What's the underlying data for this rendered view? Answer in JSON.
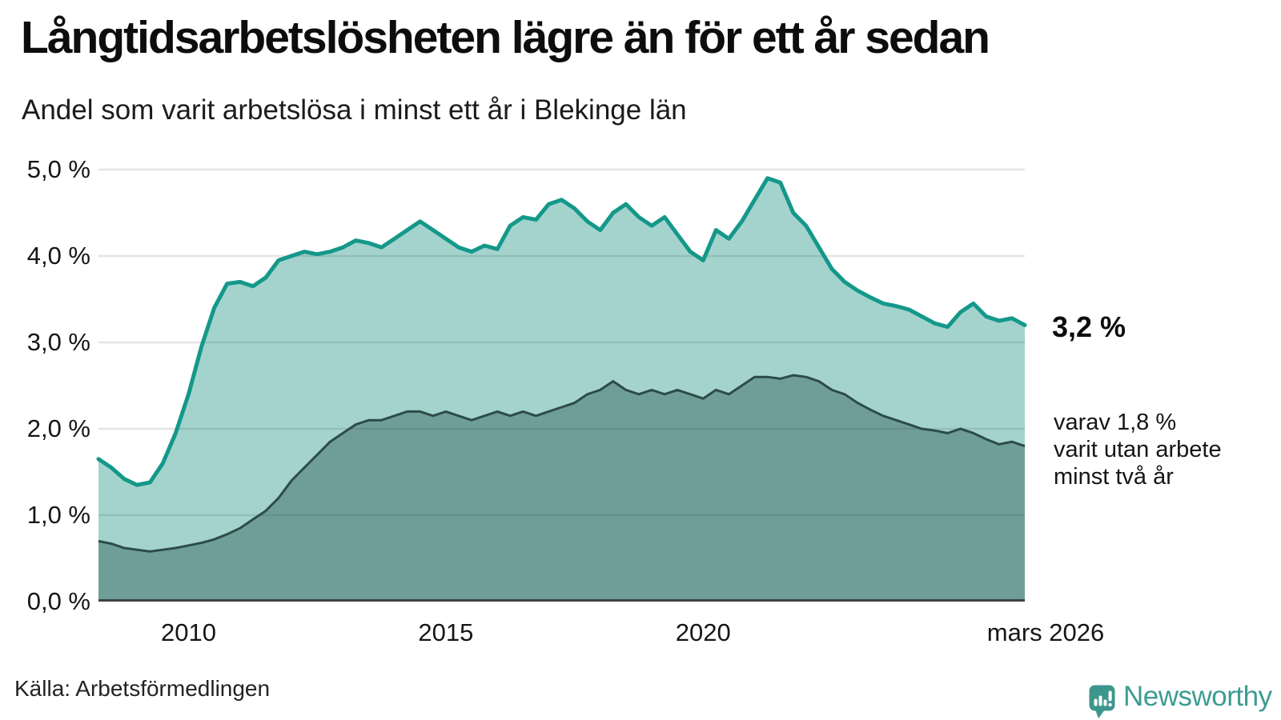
{
  "header": {
    "title": "Långtidsarbetslösheten lägre än för ett år sedan",
    "subtitle": "Andel som varit arbetslösa i minst ett år i Blekinge län"
  },
  "annotations": {
    "latest_total": "3,2 %",
    "latest_two_year_lines": [
      "varav 1,8 %",
      "varit utan arbete",
      "minst två år"
    ]
  },
  "footer": {
    "source": "Källa: Arbetsförmedlingen",
    "brand": "Newsworthy"
  },
  "colors": {
    "line_one_year": "#14988a",
    "fill_one_year": "#a4d3cd",
    "line_two_year": "#2d4c47",
    "fill_two_year": "#6f9e99",
    "axis_baseline": "#3c4340",
    "gridline_overlay": "rgba(50,55,55,0.13)",
    "brand_teal": "#3d9c92"
  },
  "chart_data": {
    "type": "area",
    "title": "Långtidsarbetslösheten lägre än för ett år sedan",
    "subtitle": "Andel som varit arbetslösa i minst ett år i Blekinge län",
    "unit": "%",
    "x_start_decimal_year": 2008.25,
    "x_end_decimal_year": 2026.25,
    "x_step_years": 0.25,
    "x_end_label": "mars 2026",
    "ylim": [
      0,
      5
    ],
    "grid": true,
    "yticks": [
      {
        "value": 0,
        "label": "0,0 %"
      },
      {
        "value": 1,
        "label": "1,0 %"
      },
      {
        "value": 2,
        "label": "2,0 %"
      },
      {
        "value": 3,
        "label": "3,0 %"
      },
      {
        "value": 4,
        "label": "4,0 %"
      },
      {
        "value": 5,
        "label": "5,0 %"
      }
    ],
    "xticks": [
      {
        "value": 2010,
        "label": "2010"
      },
      {
        "value": 2015,
        "label": "2015"
      },
      {
        "value": 2020,
        "label": "2020"
      },
      {
        "value": 2026.25,
        "label": "mars 2026"
      }
    ],
    "series": [
      {
        "name": "Andel arbetslösa minst ett år",
        "latest_label": "3,2 %",
        "latest_value": 3.2,
        "values": [
          1.65,
          1.55,
          1.42,
          1.35,
          1.38,
          1.6,
          1.95,
          2.4,
          2.95,
          3.4,
          3.68,
          3.7,
          3.65,
          3.75,
          3.95,
          4.0,
          4.05,
          4.02,
          4.05,
          4.1,
          4.18,
          4.15,
          4.1,
          4.2,
          4.3,
          4.4,
          4.3,
          4.2,
          4.1,
          4.05,
          4.12,
          4.08,
          4.35,
          4.45,
          4.42,
          4.6,
          4.65,
          4.55,
          4.4,
          4.3,
          4.5,
          4.6,
          4.45,
          4.35,
          4.45,
          4.25,
          4.05,
          3.95,
          4.3,
          4.2,
          4.4,
          4.65,
          4.9,
          4.85,
          4.5,
          4.35,
          4.1,
          3.85,
          3.7,
          3.6,
          3.52,
          3.45,
          3.42,
          3.38,
          3.3,
          3.22,
          3.18,
          3.35,
          3.45,
          3.3,
          3.25,
          3.28,
          3.2
        ]
      },
      {
        "name": "Andel arbetslösa minst två år",
        "latest_label": "1,8 %",
        "latest_value": 1.8,
        "values": [
          0.7,
          0.67,
          0.62,
          0.6,
          0.58,
          0.6,
          0.62,
          0.65,
          0.68,
          0.72,
          0.78,
          0.85,
          0.95,
          1.05,
          1.2,
          1.4,
          1.55,
          1.7,
          1.85,
          1.95,
          2.05,
          2.1,
          2.1,
          2.15,
          2.2,
          2.2,
          2.15,
          2.2,
          2.15,
          2.1,
          2.15,
          2.2,
          2.15,
          2.2,
          2.15,
          2.2,
          2.25,
          2.3,
          2.4,
          2.45,
          2.55,
          2.45,
          2.4,
          2.45,
          2.4,
          2.45,
          2.4,
          2.35,
          2.45,
          2.4,
          2.5,
          2.6,
          2.6,
          2.58,
          2.62,
          2.6,
          2.55,
          2.45,
          2.4,
          2.3,
          2.22,
          2.15,
          2.1,
          2.05,
          2.0,
          1.98,
          1.95,
          2.0,
          1.95,
          1.88,
          1.82,
          1.85,
          1.8
        ]
      }
    ]
  }
}
